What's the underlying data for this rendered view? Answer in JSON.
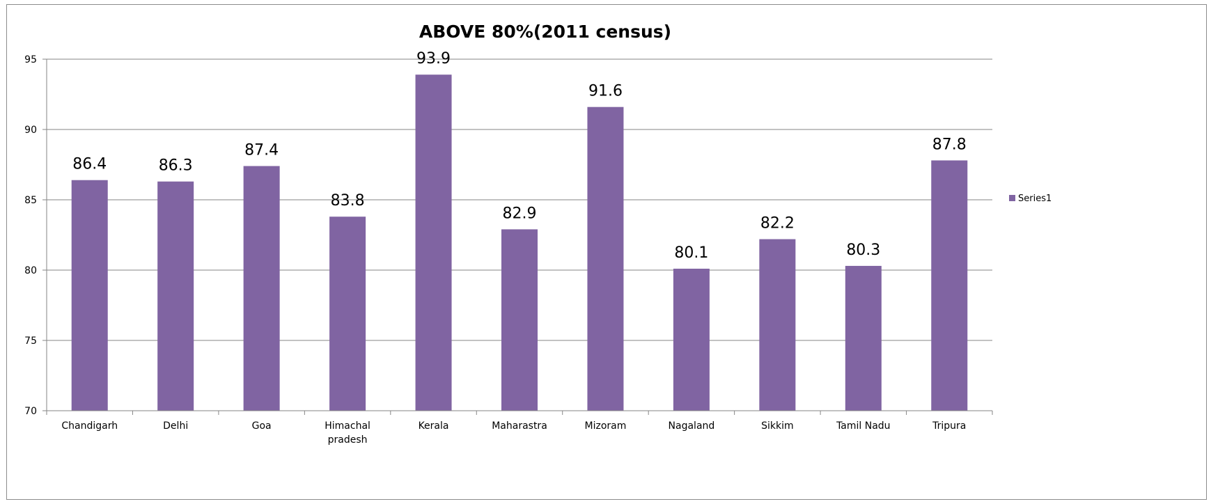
{
  "chart_data": {
    "type": "bar",
    "title": "ABOVE 80%(2011 census)",
    "categories": [
      "Chandigarh",
      "Delhi",
      "Goa",
      "Himachal pradesh",
      "Kerala",
      "Maharastra",
      "Mizoram",
      "Nagaland",
      "Sikkim",
      "Tamil Nadu",
      "Tripura"
    ],
    "category_lines": [
      [
        "Chandigarh"
      ],
      [
        "Delhi"
      ],
      [
        "Goa"
      ],
      [
        "Himachal",
        "pradesh"
      ],
      [
        "Kerala"
      ],
      [
        "Maharastra"
      ],
      [
        "Mizoram"
      ],
      [
        "Nagaland"
      ],
      [
        "Sikkim"
      ],
      [
        "Tamil Nadu"
      ],
      [
        "Tripura"
      ]
    ],
    "series": [
      {
        "name": "Series1",
        "values": [
          86.4,
          86.3,
          87.4,
          83.8,
          93.9,
          82.9,
          91.6,
          80.1,
          82.2,
          80.3,
          87.8
        ],
        "color": "#8064a2"
      }
    ],
    "value_labels": [
      "86.4",
      "86.3",
      "87.4",
      "83.8",
      "93.9",
      "82.9",
      "91.6",
      "80.1",
      "82.2",
      "80.3",
      "87.8"
    ],
    "y_ticks": [
      70,
      75,
      80,
      85,
      90,
      95
    ],
    "ylim": [
      70,
      95
    ],
    "xlabel": "",
    "ylabel": "",
    "grid": true,
    "legend_position": "right",
    "gridline_color": "#868686",
    "axis_color": "#868686"
  }
}
